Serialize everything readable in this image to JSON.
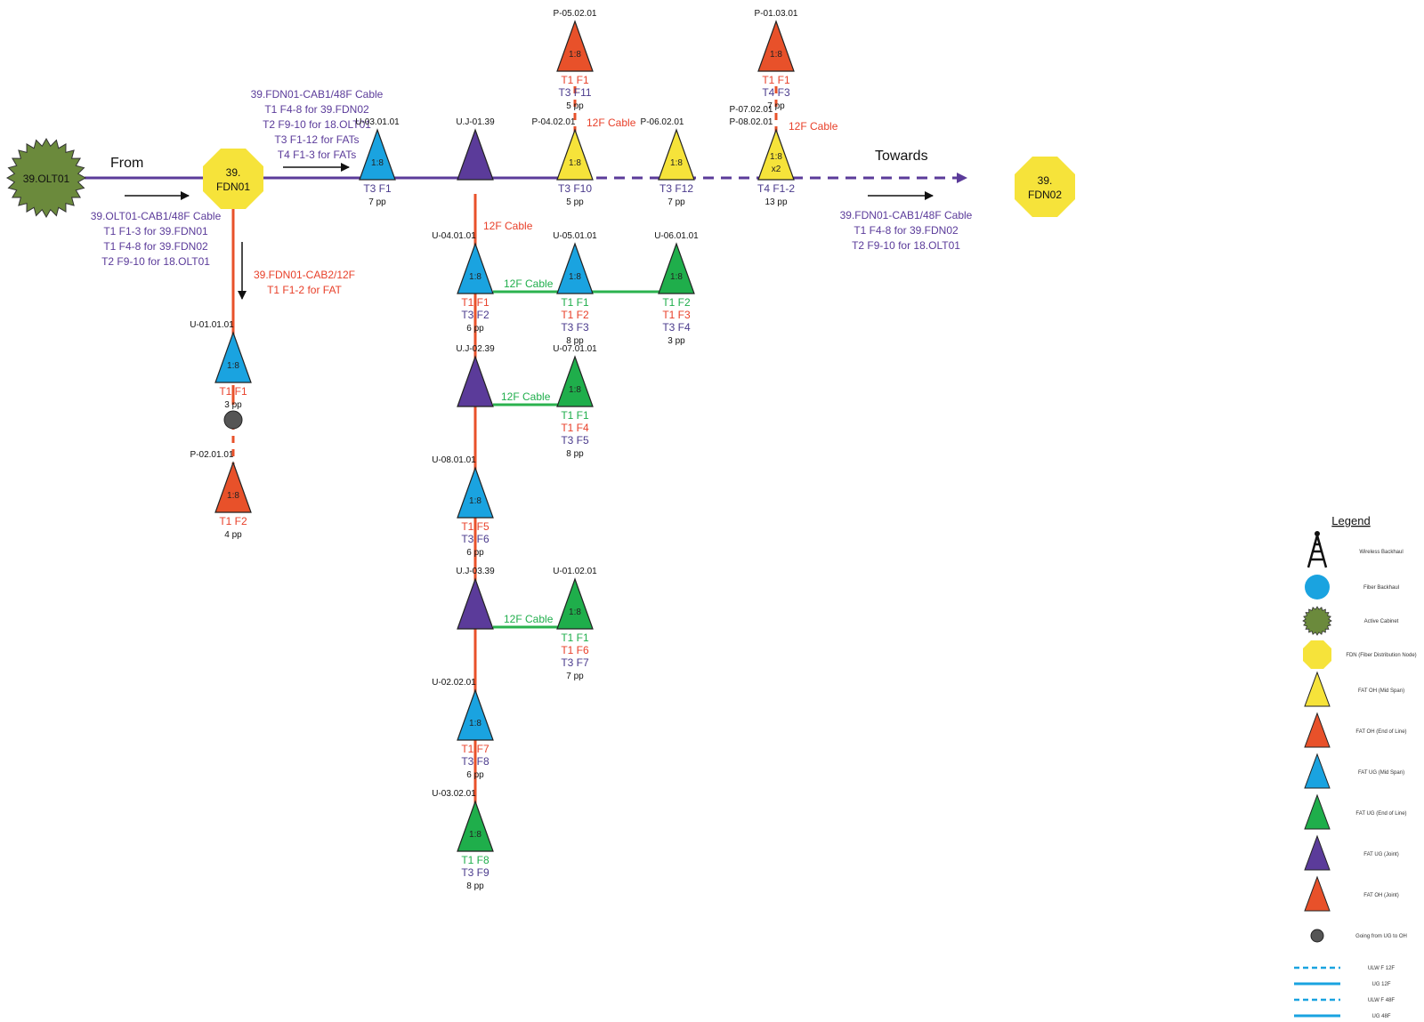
{
  "colors": {
    "purple": "#5b3b9a",
    "red": "#e8512a",
    "green": "#1fae4b",
    "blue": "#1aa3e0",
    "yellow": "#f6e33a",
    "olive": "#6b8a3c",
    "t1": "#e8402a",
    "t3": "#4a3a8c",
    "gline": "#2ab24e"
  },
  "text_labels": {
    "from": "From",
    "towards": "Towards",
    "olt": "39.OLT01",
    "fdn01": [
      "39.",
      "FDN01"
    ],
    "fdn02": [
      "39.",
      "FDN02"
    ],
    "cab_in": [
      "39.OLT01-CAB1/48F Cable",
      "T1 F1-3 for 39.FDN01",
      "T1 F4-8 for 39.FDN02",
      "T2 F9-10 for 18.OLT01"
    ],
    "cab_out": [
      "39.FDN01-CAB1/48F Cable",
      "T1 F4-8 for 39.FDN02",
      "T2 F9-10 for 18.OLT01",
      "T3 F1-12 for FATs",
      "T4 F1-3 for FATs"
    ],
    "cab_towards": [
      "39.FDN01-CAB1/48F Cable",
      "T1 F4-8 for 39.FDN02",
      "T2 F9-10 for 18.OLT01"
    ],
    "cab2": [
      "39.FDN01-CAB2/12F",
      "T1 F1-2 for FAT"
    ],
    "cable12f": "12F Cable"
  },
  "nodes": {
    "U-03.01.01": {
      "id": "U-03.01.01",
      "split": "1:8",
      "lines": [
        "T3 F1"
      ],
      "pp": "7 pp"
    },
    "UJ-01.39": {
      "id": "U.J-01.39"
    },
    "P-04.02.01": {
      "id": "P-04.02.01",
      "split": "1:8",
      "lines": [
        "T3 F10"
      ],
      "pp": "5 pp"
    },
    "P-05.02.01": {
      "id": "P-05.02.01",
      "split": "1:8",
      "lines": [
        "T1 F1",
        "T3 F11"
      ],
      "pp": "5 pp"
    },
    "P-06.02.01": {
      "id": "P-06.02.01",
      "split": "1:8",
      "lines": [
        "T3 F12"
      ],
      "pp": "7 pp"
    },
    "P-07.02.01": {
      "id": [
        "P-07.02.01",
        "P-08.02.01"
      ],
      "split": [
        "1:8",
        "x2"
      ],
      "lines": [
        "T4 F1-2"
      ],
      "pp": "13 pp"
    },
    "P-01.03.01": {
      "id": "P-01.03.01",
      "split": "1:8",
      "lines": [
        "T1 F1",
        "T4 F3"
      ],
      "pp": "7 pp"
    },
    "U-04.01.01": {
      "id": "U-04.01.01",
      "split": "1:8",
      "lines": [
        "T1 F1",
        "T3 F2"
      ],
      "pp": "6 pp"
    },
    "U-05.01.01": {
      "id": "U-05.01.01",
      "split": "1:8",
      "lines": [
        "T1 F1",
        "T1 F2",
        "T3 F3"
      ],
      "pp": "8 pp"
    },
    "U-06.01.01": {
      "id": "U-06.01.01",
      "split": "1:8",
      "lines": [
        "T1 F2",
        "T1 F3",
        "T3 F4"
      ],
      "pp": "3 pp"
    },
    "UJ-02.39": {
      "id": "U.J-02.39"
    },
    "U-07.01.01": {
      "id": "U-07.01.01",
      "split": "1:8",
      "lines": [
        "T1 F1",
        "T1 F4",
        "T3 F5"
      ],
      "pp": "8 pp"
    },
    "U-08.01.01": {
      "id": "U-08.01.01",
      "split": "1:8",
      "lines": [
        "T1 F5",
        "T3 F6"
      ],
      "pp": "6 pp"
    },
    "UJ-03.39": {
      "id": "U.J-03.39"
    },
    "U-01.02.01": {
      "id": "U-01.02.01",
      "split": "1:8",
      "lines": [
        "T1 F1",
        "T1 F6",
        "T3 F7"
      ],
      "pp": "7 pp"
    },
    "U-02.02.01": {
      "id": "U-02.02.01",
      "split": "1:8",
      "lines": [
        "T1 F7",
        "T3 F8"
      ],
      "pp": "6 pp"
    },
    "U-03.02.01": {
      "id": "U-03.02.01",
      "split": "1:8",
      "lines": [
        "T1 F8",
        "T3 F9"
      ],
      "pp": "8 pp"
    },
    "U-01.01.01": {
      "id": "U-01.01.01",
      "split": "1:8",
      "lines": [
        "T1 F1"
      ],
      "pp": "3 pp"
    },
    "P-02.01.01": {
      "id": "P-02.01.01",
      "split": "1:8",
      "lines": [
        "T1 F2"
      ],
      "pp": "4 pp"
    }
  },
  "legend": {
    "title": "Legend",
    "items": [
      {
        "shape": "tower",
        "label": "Wireless Backhaul"
      },
      {
        "shape": "circle-blue",
        "label": "Fiber Backhaul"
      },
      {
        "shape": "star-olive",
        "label": "Active Cabinet"
      },
      {
        "shape": "octagon-yellow",
        "label": "FDN (Fiber Distribution Node)"
      },
      {
        "shape": "tri-yellow",
        "label": "FAT OH (Mid Span)"
      },
      {
        "shape": "tri-red",
        "label": "FAT OH (End of Line)"
      },
      {
        "shape": "tri-blue",
        "label": "FAT UG (Mid Span)"
      },
      {
        "shape": "tri-green",
        "label": "FAT UG (End of Line)"
      },
      {
        "shape": "tri-purple",
        "label": "FAT UG (Joint)"
      },
      {
        "shape": "tri-red",
        "label": "FAT OH (Joint)"
      },
      {
        "shape": "dot-grey",
        "label": "Going from UG to OH"
      },
      {
        "shape": "dash",
        "label": "ULW F 12F"
      },
      {
        "shape": "solid",
        "label": "UG 12F"
      },
      {
        "shape": "dash",
        "label": "ULW F 48F"
      },
      {
        "shape": "solid",
        "label": "UG 48F"
      }
    ]
  }
}
